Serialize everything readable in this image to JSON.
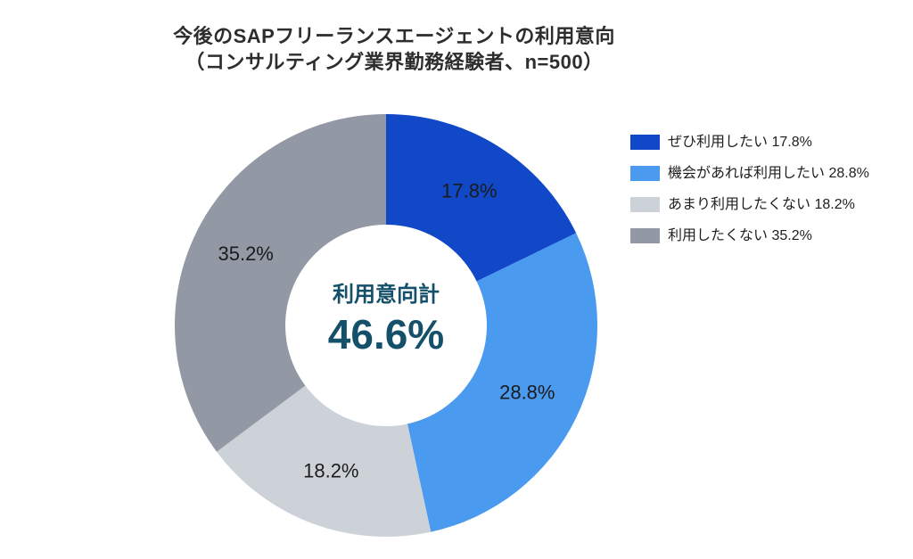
{
  "header": {
    "title_line1": "今後のSAPフリーランスエージェントの利用意向",
    "title_line2": "（コンサルティング業界勤務経験者、n=500）"
  },
  "chart_data": {
    "type": "pie",
    "subtype": "donut",
    "title": "今後のSAPフリーランスエージェントの利用意向（コンサルティング業界勤務経験者、n=500）",
    "sample_note": "n=500",
    "start_angle_deg": 0,
    "direction": "clockwise",
    "segments": [
      {
        "label": "ぜひ利用したい",
        "value": 17.8,
        "data_label": "17.8%",
        "color": "#1148c8"
      },
      {
        "label": "機会があれば利用したい",
        "value": 28.8,
        "data_label": "28.8%",
        "color": "#4a9af0"
      },
      {
        "label": "あまり利用したくない",
        "value": 18.2,
        "data_label": "18.2%",
        "color": "#cdd2d9"
      },
      {
        "label": "利用したくない",
        "value": 35.2,
        "data_label": "35.2%",
        "color": "#9299a4"
      }
    ],
    "center_text": {
      "label": "利用意向計",
      "value": "46.6%",
      "color": "#15506a"
    },
    "slice_label_color": "#1b1b1b",
    "legend_position": "right",
    "legend_format": "label value%"
  }
}
